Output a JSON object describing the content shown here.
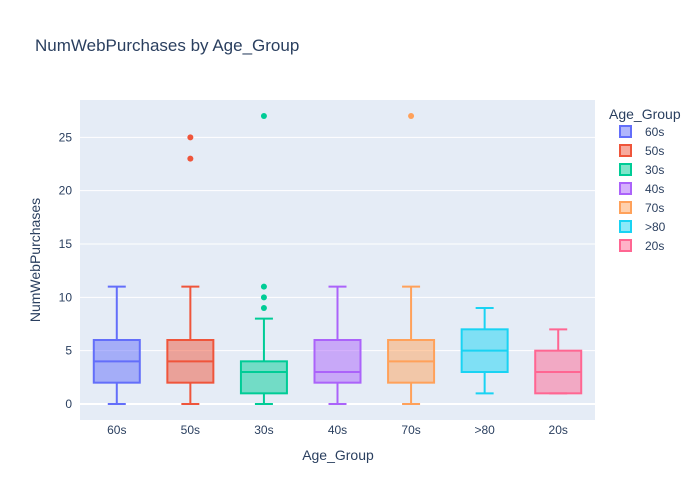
{
  "chart_data": {
    "type": "box",
    "title": "NumWebPurchases by Age_Group",
    "xlabel": "Age_Group",
    "ylabel": "NumWebPurchases",
    "ylim": [
      -1.5,
      28.5
    ],
    "yticks": [
      0,
      5,
      10,
      15,
      20,
      25
    ],
    "grid": true,
    "legend": {
      "title": "Age_Group",
      "position": "right"
    },
    "series": [
      {
        "name": "60s",
        "color": "#636efa",
        "min": 0,
        "q1": 2,
        "median": 4,
        "q3": 6,
        "max": 11,
        "outliers": []
      },
      {
        "name": "50s",
        "color": "#EF553B",
        "min": 0,
        "q1": 2,
        "median": 4,
        "q3": 6,
        "max": 11,
        "outliers": [
          23,
          25
        ]
      },
      {
        "name": "30s",
        "color": "#00cc96",
        "min": 0,
        "q1": 1,
        "median": 3,
        "q3": 4,
        "max": 8,
        "outliers": [
          9,
          10,
          11,
          27
        ]
      },
      {
        "name": "40s",
        "color": "#ab63fa",
        "min": 0,
        "q1": 2,
        "median": 3,
        "q3": 6,
        "max": 11,
        "outliers": []
      },
      {
        "name": "70s",
        "color": "#FFA15A",
        "min": 0,
        "q1": 2,
        "median": 4,
        "q3": 6,
        "max": 11,
        "outliers": [
          27
        ]
      },
      {
        "name": ">80",
        "color": "#19d3f3",
        "min": 1,
        "q1": 3,
        "median": 5,
        "q3": 7,
        "max": 9,
        "outliers": []
      },
      {
        "name": "20s",
        "color": "#FF6692",
        "min": 1,
        "q1": 1,
        "median": 3,
        "q3": 5,
        "max": 7,
        "outliers": []
      }
    ]
  }
}
